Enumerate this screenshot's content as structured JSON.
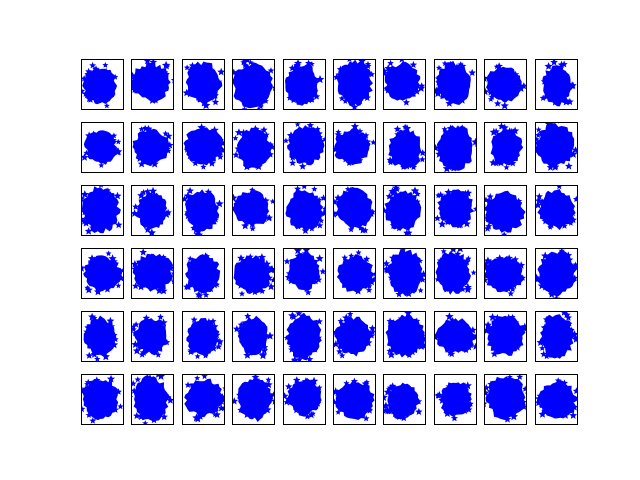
{
  "chart_data": {
    "type": "scatter",
    "color": "#0000ff",
    "grid": false
  }
}
